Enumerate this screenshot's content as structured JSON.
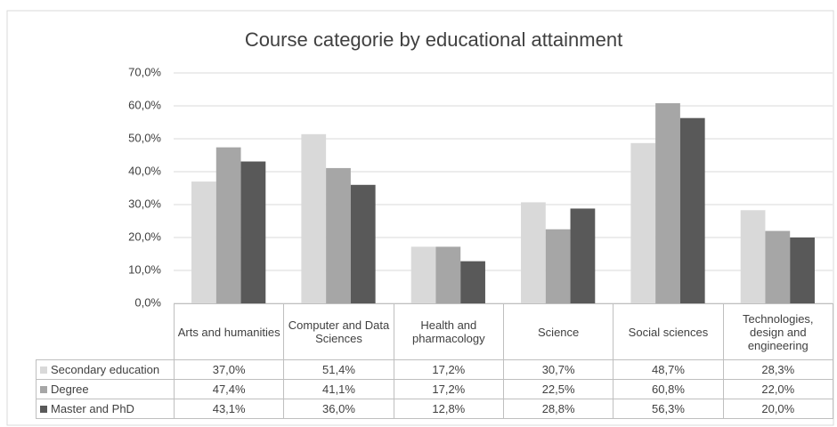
{
  "chart_data": {
    "type": "bar",
    "title": "Course categorie by educational attainment",
    "categories": [
      "Arts and humanities",
      "Computer and Data Sciences",
      "Health and pharmacology",
      "Science",
      "Social sciences",
      "Technologies, design and engineering"
    ],
    "series": [
      {
        "name": "Secondary education",
        "color": "#d9d9d9",
        "values": [
          37.0,
          51.4,
          17.2,
          30.7,
          48.7,
          28.3
        ],
        "value_labels": [
          "37,0%",
          "51,4%",
          "17,2%",
          "30,7%",
          "48,7%",
          "28,3%"
        ]
      },
      {
        "name": "Degree",
        "color": "#a6a6a6",
        "values": [
          47.4,
          41.1,
          17.2,
          22.5,
          60.8,
          22.0
        ],
        "value_labels": [
          "47,4%",
          "41,1%",
          "17,2%",
          "22,5%",
          "60,8%",
          "22,0%"
        ]
      },
      {
        "name": "Master and PhD",
        "color": "#595959",
        "values": [
          43.1,
          36.0,
          12.8,
          28.8,
          56.3,
          20.0
        ],
        "value_labels": [
          "43,1%",
          "36,0%",
          "12,8%",
          "28,8%",
          "56,3%",
          "20,0%"
        ]
      }
    ],
    "ylim": [
      0,
      70
    ],
    "yticks": [
      {
        "value": 0,
        "label": "0,0%"
      },
      {
        "value": 10,
        "label": "10,0%"
      },
      {
        "value": 20,
        "label": "20,0%"
      },
      {
        "value": 30,
        "label": "30,0%"
      },
      {
        "value": 40,
        "label": "40,0%"
      },
      {
        "value": 50,
        "label": "50,0%"
      },
      {
        "value": 60,
        "label": "60,0%"
      },
      {
        "value": 70,
        "label": "70,0%"
      }
    ],
    "grid": true
  }
}
